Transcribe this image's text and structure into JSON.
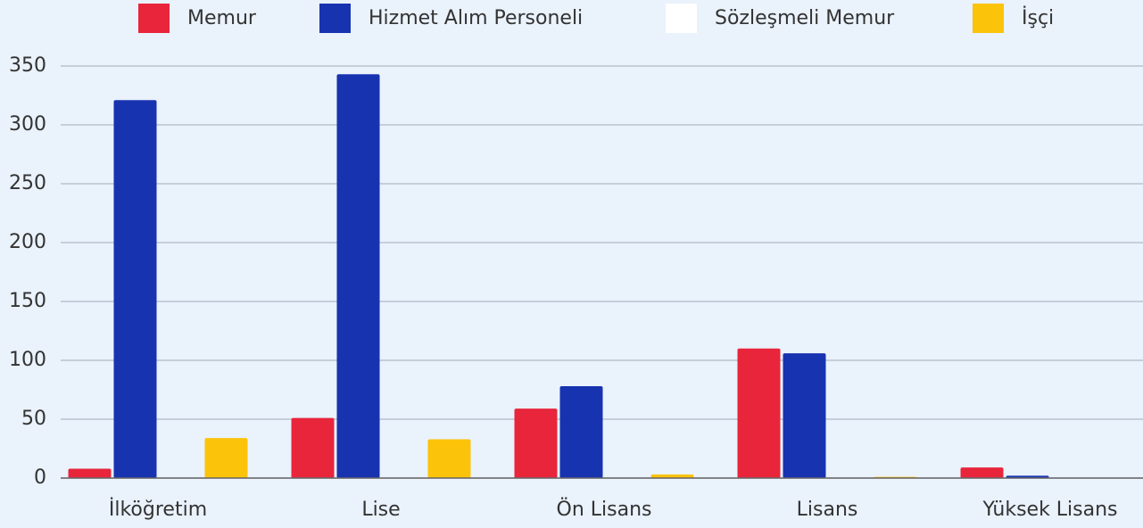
{
  "chart_data": {
    "type": "bar",
    "categories": [
      "İlköğretim",
      "Lise",
      "Ön Lisans",
      "Lisans",
      "Yüksek Lisans"
    ],
    "series": [
      {
        "name": "Memur",
        "color": "#e8253b",
        "values": [
          8,
          51,
          59,
          110,
          9
        ]
      },
      {
        "name": "Hizmet Alım Personeli",
        "color": "#1733b0",
        "values": [
          321,
          343,
          78,
          106,
          2
        ]
      },
      {
        "name": "Sözleşmeli Memur",
        "color": "#ffffff",
        "values": [
          0,
          0,
          0,
          0,
          0
        ]
      },
      {
        "name": "İşçi",
        "color": "#fcc30b",
        "values": [
          34,
          33,
          3,
          1,
          0
        ]
      }
    ],
    "ylim": [
      0,
      350
    ],
    "yticks": [
      0,
      50,
      100,
      150,
      200,
      250,
      300,
      350
    ],
    "grid": true,
    "legend": "top"
  }
}
